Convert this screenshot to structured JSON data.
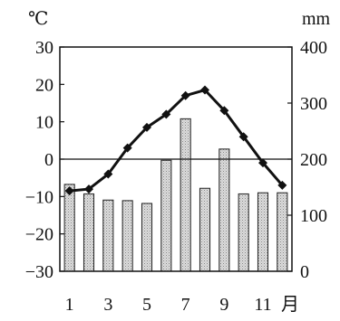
{
  "chart_data": {
    "type": "bar+line",
    "left_axis": {
      "unit_label": "℃",
      "ylim": [
        -30,
        30
      ],
      "ticks": [
        30,
        20,
        10,
        0,
        -10,
        -20,
        -30
      ],
      "tick_labels": [
        "30",
        "20",
        "10",
        "0",
        "−10",
        "−20",
        "−30"
      ]
    },
    "right_axis": {
      "unit_label": "mm",
      "ylim": [
        0,
        400
      ],
      "ticks": [
        400,
        300,
        200,
        100,
        0
      ],
      "tick_labels": [
        "400",
        "300",
        "200",
        "100",
        "0"
      ]
    },
    "x_axis": {
      "categories": [
        1,
        2,
        3,
        4,
        5,
        6,
        7,
        8,
        9,
        10,
        11,
        12
      ],
      "tick_labels": [
        "1",
        "3",
        "5",
        "7",
        "9",
        "11"
      ],
      "tick_positions": [
        1,
        3,
        5,
        7,
        9,
        11
      ],
      "unit_label": "月"
    },
    "series": [
      {
        "kind": "bar",
        "axis": "right",
        "values": [
          155,
          138,
          127,
          126,
          121,
          198,
          272,
          148,
          218,
          138,
          140,
          140
        ]
      },
      {
        "kind": "line",
        "axis": "left",
        "marker": "diamond",
        "values": [
          -8.5,
          -8,
          -4,
          3,
          8.5,
          12,
          17,
          18.5,
          13,
          6,
          -1,
          -7
        ]
      }
    ],
    "grid": false,
    "zero_line": true
  }
}
